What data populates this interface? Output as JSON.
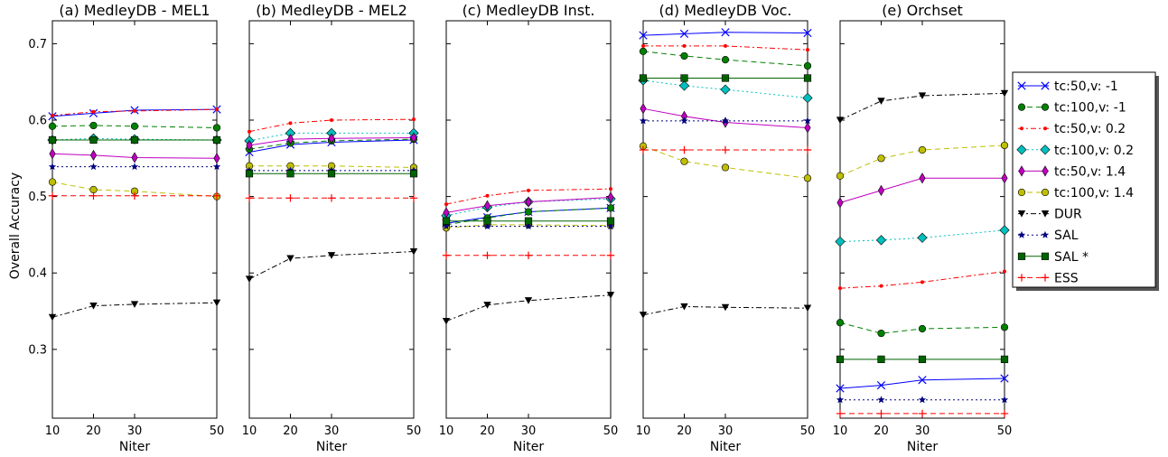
{
  "chart_data": {
    "type": "line",
    "ylabel": "Overall Accuracy",
    "xlabel": "Niter",
    "ylim": [
      0.21,
      0.73
    ],
    "xlim": [
      10,
      50
    ],
    "xticks": [
      10,
      20,
      30,
      50
    ],
    "yticks": [
      0.3,
      0.4,
      0.5,
      0.6,
      0.7
    ],
    "grid": false,
    "legend_position": "right",
    "legend": [
      {
        "name": "tc:50,v: -1",
        "color": "#0000ff",
        "marker": "x",
        "dash": "solid"
      },
      {
        "name": "tc:100,v: -1",
        "color": "#008000",
        "marker": "circle",
        "dash": "dashed"
      },
      {
        "name": "tc:50,v: 0.2",
        "color": "#ff0000",
        "marker": "point",
        "dash": "dashdot"
      },
      {
        "name": "tc:100,v: 0.2",
        "color": "#00bfbf",
        "marker": "diamond",
        "dash": "dotted"
      },
      {
        "name": "tc:50,v: 1.4",
        "color": "#bf00bf",
        "marker": "thin_diamond",
        "dash": "solid"
      },
      {
        "name": "tc:100,v: 1.4",
        "color": "#bfbf00",
        "marker": "hexagon",
        "dash": "dashed"
      },
      {
        "name": "DUR",
        "color": "#000000",
        "marker": "triangle_down",
        "dash": "dashdot"
      },
      {
        "name": "SAL",
        "color": "#00007f",
        "marker": "star",
        "dash": "dotted"
      },
      {
        "name": "SAL *",
        "color": "#006400",
        "marker": "square",
        "dash": "solid"
      },
      {
        "name": "ESS",
        "color": "#ff0000",
        "marker": "plus",
        "dash": "dashed"
      }
    ],
    "panels": [
      {
        "title": "(a) MedleyDB - MEL1",
        "x": [
          10,
          20,
          30,
          50
        ],
        "series": [
          {
            "name": "tc:50,v: -1",
            "values": [
              0.605,
              0.609,
              0.613,
              0.614
            ]
          },
          {
            "name": "tc:100,v: -1",
            "values": [
              0.592,
              0.593,
              0.592,
              0.59
            ]
          },
          {
            "name": "tc:50,v: 0.2",
            "values": [
              0.606,
              0.611,
              0.612,
              0.614
            ]
          },
          {
            "name": "tc:100,v: 0.2",
            "values": [
              0.574,
              0.576,
              0.575,
              0.574
            ]
          },
          {
            "name": "tc:50,v: 1.4",
            "values": [
              0.556,
              0.554,
              0.551,
              0.55
            ]
          },
          {
            "name": "tc:100,v: 1.4",
            "values": [
              0.519,
              0.509,
              0.507,
              0.5
            ]
          },
          {
            "name": "DUR",
            "values": [
              0.342,
              0.357,
              0.359,
              0.361
            ]
          },
          {
            "name": "SAL",
            "values": [
              0.539,
              0.539,
              0.539,
              0.539
            ]
          },
          {
            "name": "SAL *",
            "values": [
              0.574,
              0.574,
              0.574,
              0.574
            ]
          },
          {
            "name": "ESS",
            "values": [
              0.501,
              0.501,
              0.501,
              0.501
            ]
          }
        ]
      },
      {
        "title": "(b) MedleyDB - MEL2",
        "x": [
          10,
          20,
          30,
          50
        ],
        "series": [
          {
            "name": "tc:50,v: -1",
            "values": [
              0.558,
              0.568,
              0.571,
              0.574
            ]
          },
          {
            "name": "tc:100,v: -1",
            "values": [
              0.562,
              0.57,
              0.573,
              0.575
            ]
          },
          {
            "name": "tc:50,v: 0.2",
            "values": [
              0.585,
              0.596,
              0.6,
              0.601
            ]
          },
          {
            "name": "tc:100,v: 0.2",
            "values": [
              0.573,
              0.583,
              0.583,
              0.583
            ]
          },
          {
            "name": "tc:50,v: 1.4",
            "values": [
              0.567,
              0.575,
              0.576,
              0.577
            ]
          },
          {
            "name": "tc:100,v: 1.4",
            "values": [
              0.54,
              0.54,
              0.54,
              0.538
            ]
          },
          {
            "name": "DUR",
            "values": [
              0.392,
              0.419,
              0.423,
              0.428
            ]
          },
          {
            "name": "SAL",
            "values": [
              0.534,
              0.534,
              0.534,
              0.534
            ]
          },
          {
            "name": "SAL *",
            "values": [
              0.53,
              0.53,
              0.53,
              0.53
            ]
          },
          {
            "name": "ESS",
            "values": [
              0.498,
              0.498,
              0.498,
              0.498
            ]
          }
        ]
      },
      {
        "title": "(c) MedleyDB Inst.",
        "x": [
          10,
          20,
          30,
          50
        ],
        "series": [
          {
            "name": "tc:50,v: -1",
            "values": [
              0.465,
              0.473,
              0.48,
              0.485
            ]
          },
          {
            "name": "tc:100,v: -1",
            "values": [
              0.463,
              0.472,
              0.48,
              0.485
            ]
          },
          {
            "name": "tc:50,v: 0.2",
            "values": [
              0.49,
              0.501,
              0.508,
              0.51
            ]
          },
          {
            "name": "tc:100,v: 0.2",
            "values": [
              0.475,
              0.486,
              0.493,
              0.497
            ]
          },
          {
            "name": "tc:50,v: 1.4",
            "values": [
              0.479,
              0.488,
              0.493,
              0.499
            ]
          },
          {
            "name": "tc:100,v: 1.4",
            "values": [
              0.459,
              0.463,
              0.463,
              0.462
            ]
          },
          {
            "name": "DUR",
            "values": [
              0.337,
              0.358,
              0.364,
              0.371
            ]
          },
          {
            "name": "SAL",
            "values": [
              0.461,
              0.461,
              0.461,
              0.461
            ]
          },
          {
            "name": "SAL *",
            "values": [
              0.468,
              0.468,
              0.468,
              0.468
            ]
          },
          {
            "name": "ESS",
            "values": [
              0.423,
              0.423,
              0.423,
              0.423
            ]
          }
        ]
      },
      {
        "title": "(d) MedleyDB Voc.",
        "x": [
          10,
          20,
          30,
          50
        ],
        "series": [
          {
            "name": "tc:50,v: -1",
            "values": [
              0.711,
              0.713,
              0.715,
              0.714
            ]
          },
          {
            "name": "tc:100,v: -1",
            "values": [
              0.69,
              0.684,
              0.679,
              0.671
            ]
          },
          {
            "name": "tc:50,v: 0.2",
            "values": [
              0.697,
              0.697,
              0.697,
              0.692
            ]
          },
          {
            "name": "tc:100,v: 0.2",
            "values": [
              0.652,
              0.645,
              0.64,
              0.629
            ]
          },
          {
            "name": "tc:50,v: 1.4",
            "values": [
              0.615,
              0.605,
              0.597,
              0.59
            ]
          },
          {
            "name": "tc:100,v: 1.4",
            "values": [
              0.566,
              0.546,
              0.538,
              0.524
            ]
          },
          {
            "name": "DUR",
            "values": [
              0.345,
              0.356,
              0.355,
              0.354
            ]
          },
          {
            "name": "SAL",
            "values": [
              0.599,
              0.599,
              0.599,
              0.599
            ]
          },
          {
            "name": "SAL *",
            "values": [
              0.655,
              0.655,
              0.655,
              0.655
            ]
          },
          {
            "name": "ESS",
            "values": [
              0.561,
              0.561,
              0.561,
              0.561
            ]
          }
        ]
      },
      {
        "title": "(e) Orchset",
        "x": [
          10,
          20,
          30,
          50
        ],
        "series": [
          {
            "name": "tc:50,v: -1",
            "values": [
              0.249,
              0.253,
              0.26,
              0.262
            ]
          },
          {
            "name": "tc:100,v: -1",
            "values": [
              0.335,
              0.321,
              0.327,
              0.329
            ]
          },
          {
            "name": "tc:50,v: 0.2",
            "values": [
              0.38,
              0.383,
              0.388,
              0.402
            ]
          },
          {
            "name": "tc:100,v: 0.2",
            "values": [
              0.441,
              0.443,
              0.446,
              0.456
            ]
          },
          {
            "name": "tc:50,v: 1.4",
            "values": [
              0.492,
              0.508,
              0.524,
              0.524
            ]
          },
          {
            "name": "tc:100,v: 1.4",
            "values": [
              0.527,
              0.55,
              0.561,
              0.567
            ]
          },
          {
            "name": "DUR",
            "values": [
              0.6,
              0.625,
              0.632,
              0.635
            ]
          },
          {
            "name": "SAL",
            "values": [
              0.234,
              0.234,
              0.234,
              0.234
            ]
          },
          {
            "name": "SAL *",
            "values": [
              0.287,
              0.287,
              0.287,
              0.287
            ]
          },
          {
            "name": "ESS",
            "values": [
              0.216,
              0.216,
              0.216,
              0.216
            ]
          }
        ]
      }
    ]
  }
}
